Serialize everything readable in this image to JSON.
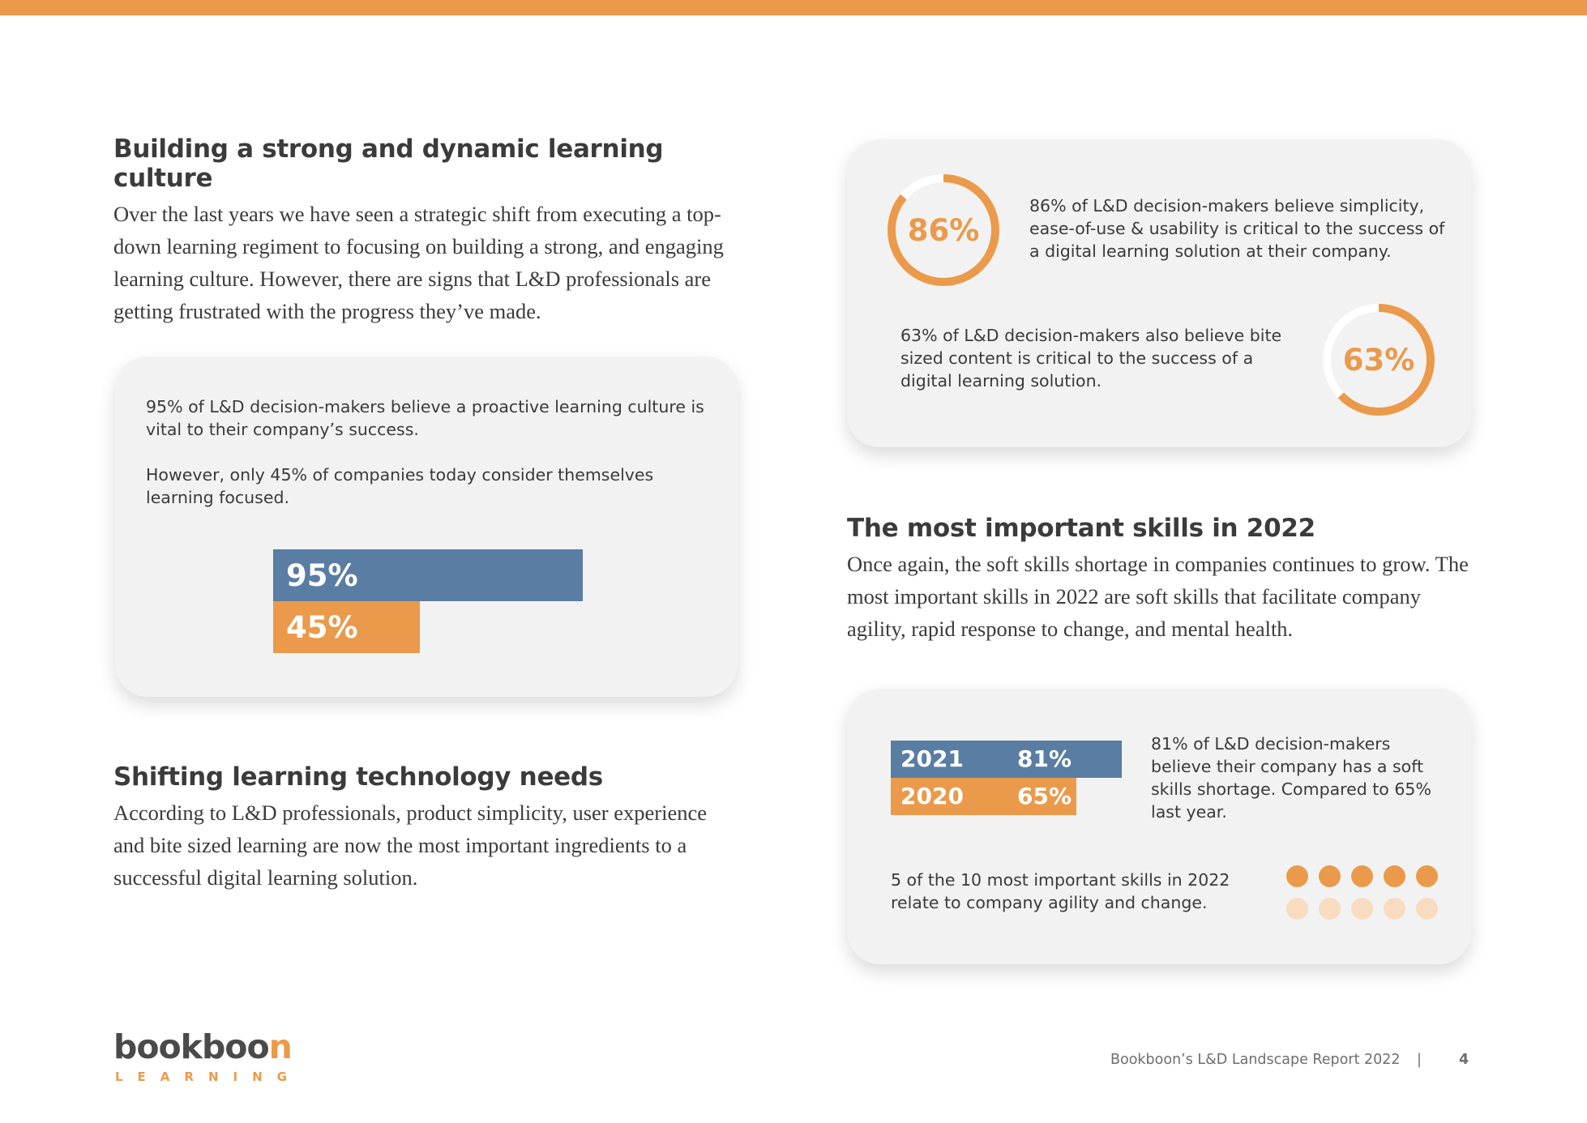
{
  "colors": {
    "accent": "#ea9a4a",
    "blue": "#5a7da3",
    "card_bg": "#f2f2f2",
    "dot_light": "#f8dcc0"
  },
  "section_culture": {
    "title": "Building a strong and dynamic learning culture",
    "body": "Over the last years we have seen a strategic shift from executing a top-down learning regiment to focusing on building a strong, and engaging learning culture. However, there are signs that L&D professionals are getting frustrated with the progress they’ve made."
  },
  "culture_card": {
    "text1": "95% of L&D decision-makers believe a proactive learning culture is vital to their company’s success.",
    "text2": "However, only 45% of companies today consider themselves learning focused.",
    "bars": [
      {
        "label": "95%",
        "value": 95
      },
      {
        "label": "45%",
        "value": 45
      }
    ]
  },
  "section_tech": {
    "title": "Shifting learning technology needs",
    "body": "According to L&D professionals, product simplicity, user experience and bite sized learning are now the most important ingredients to a successful digital learning solution."
  },
  "rings_card": {
    "stat1": {
      "label": "86%",
      "value": 86,
      "text": "86% of L&D decision-makers believe simplicity, ease-of-use & usability is critical to the success of a digital learning solution at their company."
    },
    "stat2": {
      "label": "63%",
      "value": 63,
      "text": "63% of L&D decision-makers also believe bite sized content is critical to the success of a digital learning solution."
    }
  },
  "section_skills": {
    "title": "The most important skills in 2022",
    "body": "Once again, the soft skills shortage in companies continues to grow. The most important skills in 2022 are soft skills that facilitate company agility, rapid response to change, and mental health."
  },
  "skills_card": {
    "bars": [
      {
        "year": "2021",
        "label": "81%",
        "value": 81
      },
      {
        "year": "2020",
        "label": "65%",
        "value": 65
      }
    ],
    "text1": "81% of L&D decision-makers believe their company has a soft skills shortage. Compared to 65% last year.",
    "text2": "5 of the 10 most important skills in 2022 relate to company agility and change.",
    "dots": {
      "highlighted": 5,
      "total": 10
    }
  },
  "footer": {
    "logo_main": "bookboo",
    "logo_accent": "n",
    "logo_sub": "LEARNING",
    "report_title": "Bookboon’s L&D Landscape Report 2022",
    "separator": "|",
    "page_number": "4"
  }
}
